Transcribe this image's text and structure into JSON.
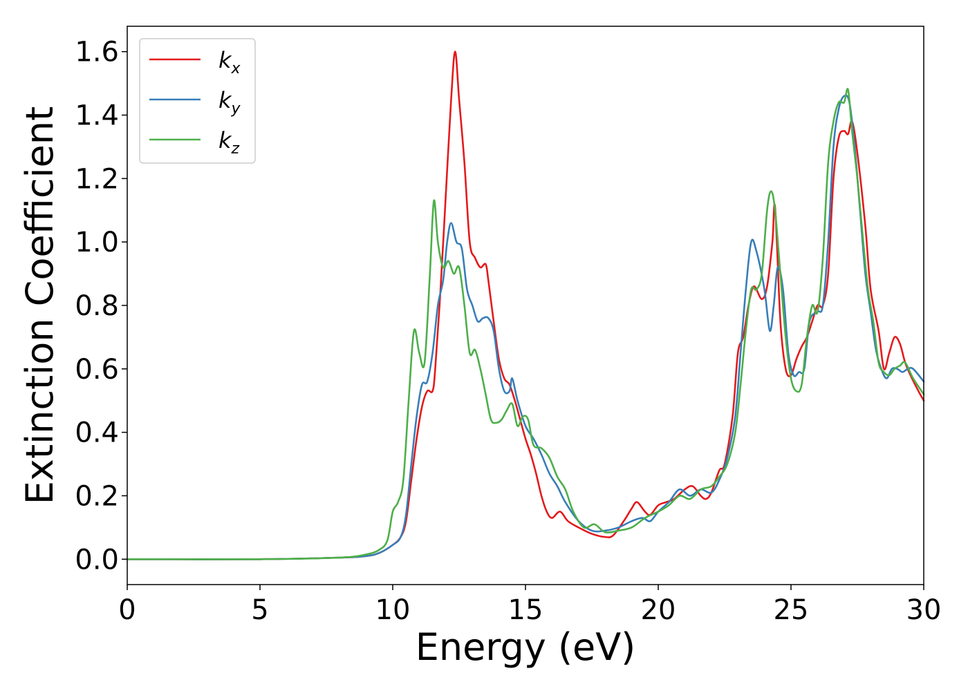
{
  "chart_data": {
    "type": "line",
    "xlabel": "Energy (eV)",
    "ylabel": "Extinction Coefficient",
    "xlim": [
      0,
      30
    ],
    "ylim": [
      -0.08,
      1.68
    ],
    "xticks": [
      0,
      5,
      10,
      15,
      20,
      25,
      30
    ],
    "xtick_labels": [
      "0",
      "5",
      "10",
      "15",
      "20",
      "25",
      "30"
    ],
    "yticks": [
      0.0,
      0.2,
      0.4,
      0.6,
      0.8,
      1.0,
      1.2,
      1.4,
      1.6
    ],
    "ytick_labels": [
      "0.0",
      "0.2",
      "0.4",
      "0.6",
      "0.8",
      "1.0",
      "1.2",
      "1.4",
      "1.6"
    ],
    "grid": false,
    "legend_position": "top-left",
    "series": [
      {
        "name": "k",
        "subscript": "x",
        "color": "#e41a1c",
        "x": [
          0,
          5,
          8,
          9,
          9.5,
          10,
          10.3,
          10.5,
          10.7,
          10.9,
          11.1,
          11.3,
          11.5,
          11.6,
          11.8,
          12.0,
          12.2,
          12.35,
          12.5,
          12.7,
          12.9,
          13.1,
          13.3,
          13.5,
          13.6,
          13.8,
          14.0,
          14.2,
          14.4,
          14.6,
          14.8,
          15.0,
          15.2,
          15.4,
          15.6,
          15.8,
          16.0,
          16.3,
          16.6,
          17.0,
          17.5,
          18.0,
          18.3,
          18.7,
          19.0,
          19.2,
          19.5,
          19.7,
          20.0,
          20.3,
          20.6,
          21.0,
          21.3,
          21.6,
          21.8,
          22.0,
          22.3,
          22.5,
          22.8,
          23.0,
          23.2,
          23.4,
          23.6,
          23.9,
          24.1,
          24.3,
          24.4,
          24.6,
          24.8,
          25.0,
          25.2,
          25.4,
          25.6,
          25.8,
          26.0,
          26.2,
          26.4,
          26.6,
          26.8,
          27.0,
          27.15,
          27.3,
          27.5,
          27.8,
          28.0,
          28.3,
          28.5,
          28.7,
          28.9,
          29.1,
          29.3,
          29.5,
          29.8,
          30.0
        ],
        "values": [
          0.0,
          0.0,
          0.005,
          0.01,
          0.02,
          0.045,
          0.07,
          0.12,
          0.25,
          0.38,
          0.48,
          0.53,
          0.53,
          0.6,
          0.85,
          1.15,
          1.45,
          1.6,
          1.45,
          1.25,
          1.0,
          0.95,
          0.92,
          0.93,
          0.88,
          0.75,
          0.63,
          0.57,
          0.55,
          0.5,
          0.44,
          0.38,
          0.33,
          0.27,
          0.2,
          0.15,
          0.13,
          0.15,
          0.12,
          0.1,
          0.08,
          0.07,
          0.075,
          0.12,
          0.16,
          0.18,
          0.15,
          0.14,
          0.17,
          0.18,
          0.19,
          0.22,
          0.23,
          0.2,
          0.19,
          0.21,
          0.28,
          0.3,
          0.45,
          0.65,
          0.7,
          0.8,
          0.86,
          0.82,
          0.86,
          1.0,
          1.11,
          0.75,
          0.6,
          0.58,
          0.63,
          0.67,
          0.7,
          0.75,
          0.8,
          0.8,
          0.9,
          1.2,
          1.33,
          1.35,
          1.34,
          1.38,
          1.28,
          1.05,
          0.85,
          0.72,
          0.6,
          0.65,
          0.7,
          0.68,
          0.62,
          0.58,
          0.53,
          0.5
        ]
      },
      {
        "name": "k",
        "subscript": "y",
        "color": "#377eb8",
        "x": [
          0,
          5,
          8,
          9,
          9.5,
          10,
          10.3,
          10.5,
          10.7,
          10.9,
          11.1,
          11.3,
          11.5,
          11.7,
          11.9,
          12.05,
          12.2,
          12.4,
          12.6,
          12.8,
          13.0,
          13.2,
          13.4,
          13.6,
          13.8,
          14.0,
          14.2,
          14.4,
          14.5,
          14.7,
          15.0,
          15.3,
          15.6,
          15.9,
          16.2,
          16.5,
          17.0,
          17.5,
          18.0,
          18.5,
          19.0,
          19.4,
          19.7,
          20.0,
          20.4,
          20.8,
          21.2,
          21.6,
          22.0,
          22.3,
          22.6,
          22.9,
          23.1,
          23.3,
          23.5,
          23.7,
          24.0,
          24.2,
          24.35,
          24.5,
          24.7,
          24.9,
          25.1,
          25.3,
          25.5,
          25.7,
          26.0,
          26.2,
          26.4,
          26.6,
          26.8,
          27.0,
          27.2,
          27.4,
          27.6,
          27.8,
          28.0,
          28.2,
          28.4,
          28.6,
          28.8,
          29.0,
          29.2,
          29.4,
          29.6,
          30.0
        ],
        "values": [
          0.0,
          0.0,
          0.005,
          0.01,
          0.02,
          0.045,
          0.07,
          0.14,
          0.3,
          0.45,
          0.55,
          0.56,
          0.65,
          0.8,
          0.88,
          1.0,
          1.06,
          1.0,
          0.98,
          0.85,
          0.8,
          0.75,
          0.76,
          0.76,
          0.72,
          0.6,
          0.53,
          0.53,
          0.57,
          0.5,
          0.42,
          0.38,
          0.33,
          0.27,
          0.23,
          0.18,
          0.12,
          0.09,
          0.09,
          0.1,
          0.12,
          0.13,
          0.12,
          0.15,
          0.18,
          0.22,
          0.2,
          0.22,
          0.21,
          0.25,
          0.32,
          0.45,
          0.65,
          0.85,
          1.0,
          0.97,
          0.85,
          0.72,
          0.8,
          0.92,
          0.85,
          0.65,
          0.58,
          0.59,
          0.6,
          0.75,
          0.78,
          0.8,
          1.0,
          1.3,
          1.42,
          1.46,
          1.44,
          1.3,
          1.1,
          0.9,
          0.78,
          0.66,
          0.6,
          0.57,
          0.6,
          0.6,
          0.59,
          0.6,
          0.6,
          0.56
        ]
      },
      {
        "name": "k",
        "subscript": "z",
        "color": "#4daf4a",
        "x": [
          0,
          5,
          8,
          9,
          9.5,
          9.8,
          10.0,
          10.2,
          10.4,
          10.6,
          10.8,
          11.0,
          11.2,
          11.4,
          11.55,
          11.7,
          11.9,
          12.1,
          12.3,
          12.5,
          12.7,
          12.9,
          13.1,
          13.3,
          13.5,
          13.7,
          13.9,
          14.1,
          14.3,
          14.5,
          14.7,
          14.9,
          15.1,
          15.3,
          15.6,
          15.9,
          16.2,
          16.5,
          16.8,
          17.2,
          17.6,
          18.0,
          18.5,
          19.0,
          19.5,
          20.0,
          20.4,
          20.8,
          21.2,
          21.6,
          22.0,
          22.3,
          22.6,
          22.9,
          23.1,
          23.3,
          23.5,
          23.7,
          23.9,
          24.1,
          24.25,
          24.4,
          24.6,
          24.8,
          25.0,
          25.2,
          25.4,
          25.6,
          25.8,
          26.0,
          26.2,
          26.4,
          26.6,
          26.8,
          27.0,
          27.15,
          27.3,
          27.5,
          27.7,
          27.9,
          28.1,
          28.3,
          28.5,
          28.7,
          28.9,
          29.1,
          29.3,
          29.6,
          30.0
        ],
        "values": [
          0.0,
          0.0,
          0.005,
          0.015,
          0.03,
          0.06,
          0.15,
          0.18,
          0.25,
          0.5,
          0.72,
          0.65,
          0.62,
          0.9,
          1.13,
          1.0,
          0.92,
          0.94,
          0.9,
          0.92,
          0.8,
          0.65,
          0.66,
          0.6,
          0.52,
          0.44,
          0.43,
          0.44,
          0.47,
          0.49,
          0.42,
          0.45,
          0.44,
          0.36,
          0.35,
          0.32,
          0.26,
          0.22,
          0.15,
          0.1,
          0.11,
          0.085,
          0.09,
          0.1,
          0.13,
          0.15,
          0.17,
          0.2,
          0.19,
          0.22,
          0.23,
          0.26,
          0.3,
          0.4,
          0.55,
          0.72,
          0.85,
          0.85,
          0.9,
          1.1,
          1.16,
          1.1,
          0.9,
          0.7,
          0.57,
          0.53,
          0.55,
          0.7,
          0.8,
          0.78,
          0.95,
          1.25,
          1.38,
          1.44,
          1.44,
          1.48,
          1.35,
          1.2,
          1.02,
          0.85,
          0.75,
          0.62,
          0.59,
          0.58,
          0.6,
          0.61,
          0.62,
          0.57,
          0.52
        ]
      }
    ]
  }
}
